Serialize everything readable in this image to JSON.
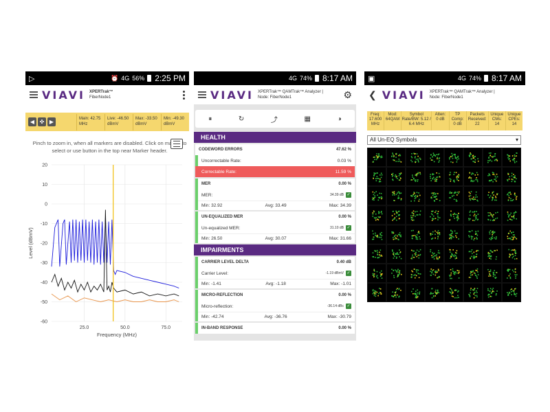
{
  "status_bars": {
    "p1_time": "2:25 PM",
    "p1_battery": "56%",
    "p2_time": "8:17 AM",
    "p2_battery": "74%",
    "p3_time": "8:17 AM",
    "p3_battery": "74%",
    "signal": "4G"
  },
  "brand": "VIAVI",
  "panel1": {
    "app_title": "XPERTrak™",
    "node": "FiberNode1",
    "markers": [
      {
        "line1": "Main: 42.75",
        "line2": "MHz"
      },
      {
        "line1": "Live: -46.50",
        "line2": "dBmV"
      },
      {
        "line1": "Max: -33.50",
        "line2": "dBmV"
      },
      {
        "line1": "Min: -49.30",
        "line2": "dBmV"
      }
    ],
    "hint": "Pinch to zoom in, when all markers are disabled. Click on marker to select or use button in the top near Marker header.",
    "chart_data": {
      "type": "line",
      "xlabel": "Frequency (MHz)",
      "ylabel": "Level (dBmV)",
      "xlim": [
        5,
        85
      ],
      "ylim": [
        -60,
        20
      ],
      "x_ticks": [
        25.0,
        50.0,
        75.0
      ],
      "x_tick_labels": [
        "25.0",
        "50.0",
        "75.0"
      ],
      "y_ticks": [
        20,
        10,
        0,
        -10,
        -20,
        -30,
        -40,
        -50,
        -60
      ],
      "marker_x": 42.75,
      "series": [
        {
          "color": "#1a1adb",
          "x": [
            5,
            7,
            9,
            10,
            12,
            13,
            14,
            16,
            17,
            18,
            19,
            20,
            21,
            22,
            23,
            24,
            25,
            26,
            27,
            28,
            29,
            30,
            31,
            32,
            33,
            34,
            35,
            36,
            37,
            38,
            39,
            40,
            41,
            42,
            43,
            44,
            45,
            50,
            55,
            60,
            65,
            70,
            75,
            80,
            83
          ],
          "y": [
            -32,
            -12,
            -8,
            -32,
            -10,
            -8,
            -31,
            -9,
            -30,
            -8,
            -29,
            -8,
            -30,
            -9,
            -29,
            -8,
            -30,
            -8,
            -29,
            -9,
            -30,
            -8,
            -31,
            -9,
            -30,
            -8,
            -31,
            -9,
            -30,
            -7,
            -30,
            -9,
            -31,
            -8,
            -34,
            -36,
            -34,
            -35,
            -37,
            -38,
            -39,
            -40,
            -41,
            -42,
            -43
          ]
        },
        {
          "color": "#111111",
          "x": [
            5,
            7,
            9,
            11,
            13,
            15,
            17,
            19,
            21,
            23,
            25,
            27,
            29,
            31,
            33,
            35,
            37,
            38,
            39,
            40,
            41,
            42,
            43,
            45,
            50,
            55,
            60,
            65,
            70,
            75,
            80,
            83
          ],
          "y": [
            -40,
            -36,
            -42,
            -38,
            -44,
            -40,
            -43,
            -39,
            -45,
            -41,
            -44,
            -40,
            -45,
            -42,
            -44,
            -41,
            -45,
            -3,
            -44,
            -42,
            -45,
            -40,
            -43,
            -45,
            -44,
            -46,
            -45,
            -47,
            -46,
            -47,
            -46,
            -47
          ]
        },
        {
          "color": "#e8944a",
          "x": [
            5,
            10,
            15,
            20,
            25,
            30,
            35,
            40,
            45,
            50,
            55,
            60,
            65,
            70,
            75,
            80,
            83
          ],
          "y": [
            -46,
            -49,
            -47,
            -50,
            -48,
            -49,
            -50,
            -49,
            -50,
            -49,
            -50,
            -50,
            -49,
            -50,
            -50,
            -49,
            -50
          ]
        }
      ]
    }
  },
  "panel2": {
    "app_title": "XPERTrak™ QAMTrak™ Analyzer |",
    "node": "Node: FiberNode1",
    "toolbar": [
      "⏸",
      "↻",
      "⤴",
      "▦",
      "◑"
    ],
    "health": "HEALTH",
    "codeword_errors": {
      "label": "CODEWORD ERRORS",
      "value": "47.62 %"
    },
    "uncorrectable": {
      "label": "Uncorrectable Rate:",
      "value": "0.03 %"
    },
    "correctable": {
      "label": "Correctable Rate:",
      "value": "11.59 %"
    },
    "mer": {
      "label": "MER",
      "value": "0.00 %",
      "sub_label": "MER:",
      "sub_value": "34.39 dB",
      "min": "Min: 32.92",
      "avg": "Avg: 33.49",
      "max": "Max: 34.39"
    },
    "ueq_mer": {
      "label": "UN-EQUALIZED MER",
      "value": "0.00 %",
      "sub_label": "Un-equalized MER:",
      "sub_value": "31.10 dB",
      "min": "Min: 26.50",
      "avg": "Avg: 30.07",
      "max": "Max: 31.66"
    },
    "impairments": "IMPAIRMENTS",
    "carrier": {
      "label": "CARRIER LEVEL DELTA",
      "value": "0.40 dB",
      "sub_label": "Carrier Level:",
      "sub_value": "-1.19 dBmV",
      "min": "Min: -1.41",
      "avg": "Avg: -1.18",
      "max": "Max: -1.01"
    },
    "micro": {
      "label": "MICRO-REFLECTION",
      "value": "0.00 %",
      "sub_label": "Micro-reflection:",
      "sub_value": "-36.14 dBc",
      "min": "Min: -42.74",
      "avg": "Avg: -36.76",
      "max": "Max: -30.79"
    },
    "inband": {
      "label": "IN-BAND RESPONSE",
      "value": "0.00 %"
    }
  },
  "panel3": {
    "app_title": "XPERTrak™ QAMTrak™ Analyzer |",
    "node": "Node: FiberNode1",
    "info": [
      [
        "Freq:",
        "17.600",
        "MHz"
      ],
      [
        "Mod:",
        "64QAM",
        ""
      ],
      [
        "Symbol",
        "Rate/BW: 5.12 /",
        "6.4 MHz"
      ],
      [
        "Atten:",
        "0 dB",
        ""
      ],
      [
        "TP",
        "Comp:",
        "0 dB"
      ],
      [
        "Packets",
        "Received:",
        "22"
      ],
      [
        "Unique",
        "CMs:",
        "14"
      ],
      [
        "Unique",
        "CPEs:",
        "14"
      ]
    ],
    "select_value": "All Un-EQ Symbols"
  }
}
